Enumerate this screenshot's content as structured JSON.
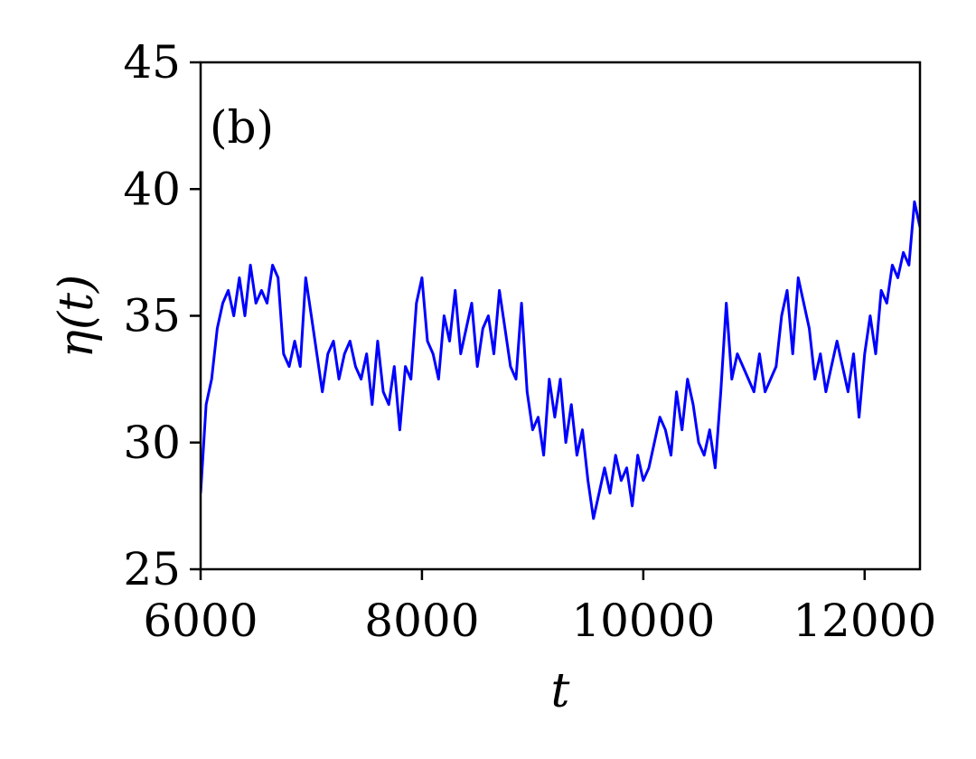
{
  "chart_data": {
    "type": "line",
    "panel_label": "(b)",
    "xlabel": "t",
    "ylabel": "η(t)",
    "xlim": [
      6000,
      12500
    ],
    "ylim": [
      25,
      45
    ],
    "xticks": [
      6000,
      8000,
      10000,
      12000
    ],
    "yticks": [
      25,
      30,
      35,
      40,
      45
    ],
    "grid": false,
    "series": [
      {
        "color": "#0000ff",
        "x": [
          6000,
          6050,
          6100,
          6150,
          6200,
          6250,
          6300,
          6350,
          6400,
          6450,
          6500,
          6550,
          6600,
          6650,
          6700,
          6750,
          6800,
          6850,
          6900,
          6950,
          7000,
          7050,
          7100,
          7150,
          7200,
          7250,
          7300,
          7350,
          7400,
          7450,
          7500,
          7550,
          7600,
          7650,
          7700,
          7750,
          7800,
          7850,
          7900,
          7950,
          8000,
          8050,
          8100,
          8150,
          8200,
          8250,
          8300,
          8350,
          8400,
          8450,
          8500,
          8550,
          8600,
          8650,
          8700,
          8750,
          8800,
          8850,
          8900,
          8950,
          9000,
          9050,
          9100,
          9150,
          9200,
          9250,
          9300,
          9350,
          9400,
          9450,
          9500,
          9550,
          9600,
          9650,
          9700,
          9750,
          9800,
          9850,
          9900,
          9950,
          10000,
          10050,
          10100,
          10150,
          10200,
          10250,
          10300,
          10350,
          10400,
          10450,
          10500,
          10550,
          10600,
          10650,
          10700,
          10750,
          10800,
          10850,
          10900,
          10950,
          11000,
          11050,
          11100,
          11150,
          11200,
          11250,
          11300,
          11350,
          11400,
          11450,
          11500,
          11550,
          11600,
          11650,
          11700,
          11750,
          11800,
          11850,
          11900,
          11950,
          12000,
          12050,
          12100,
          12150,
          12200,
          12250,
          12300,
          12350,
          12400,
          12450,
          12500
        ],
        "y": [
          28.0,
          31.5,
          32.5,
          34.5,
          35.5,
          36.0,
          35.0,
          36.5,
          35.0,
          37.0,
          35.5,
          36.0,
          35.5,
          37.0,
          36.5,
          33.5,
          33.0,
          34.0,
          33.0,
          36.5,
          35.0,
          33.5,
          32.0,
          33.5,
          34.0,
          32.5,
          33.5,
          34.0,
          33.0,
          32.5,
          33.5,
          31.5,
          34.0,
          32.0,
          31.5,
          33.0,
          30.5,
          33.0,
          32.5,
          35.5,
          36.5,
          34.0,
          33.5,
          32.5,
          35.0,
          34.0,
          36.0,
          33.5,
          34.5,
          35.5,
          33.0,
          34.5,
          35.0,
          33.5,
          36.0,
          34.5,
          33.0,
          32.5,
          35.5,
          32.0,
          30.5,
          31.0,
          29.5,
          32.5,
          31.0,
          32.5,
          30.0,
          31.5,
          29.5,
          30.5,
          28.5,
          27.0,
          28.0,
          29.0,
          28.0,
          29.5,
          28.5,
          29.0,
          27.5,
          29.5,
          28.5,
          29.0,
          30.0,
          31.0,
          30.5,
          29.5,
          32.0,
          30.5,
          32.5,
          31.5,
          30.0,
          29.5,
          30.5,
          29.0,
          32.0,
          35.5,
          32.5,
          33.5,
          33.0,
          32.5,
          32.0,
          33.5,
          32.0,
          32.5,
          33.0,
          35.0,
          36.0,
          33.5,
          36.5,
          35.5,
          34.5,
          32.5,
          33.5,
          32.0,
          33.0,
          34.0,
          33.0,
          32.0,
          33.5,
          31.0,
          33.5,
          35.0,
          33.5,
          36.0,
          35.5,
          37.0,
          36.5,
          37.5,
          37.0,
          39.5,
          38.5
        ]
      }
    ]
  }
}
